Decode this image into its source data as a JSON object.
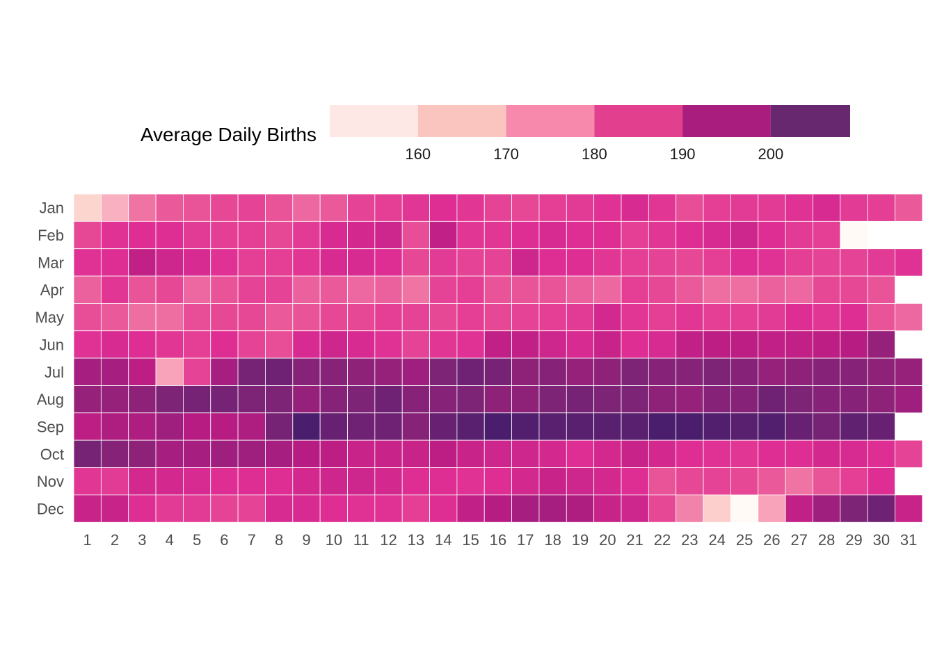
{
  "chart_data": {
    "type": "heatmap",
    "title": "",
    "xlabel": "",
    "ylabel": "",
    "legend": {
      "title": "Average Daily Births",
      "placement": "top",
      "breaks": [
        160,
        170,
        180,
        190,
        200
      ],
      "range": [
        150,
        209
      ],
      "colors": [
        "#fde8e5",
        "#fbc5bf",
        "#f689ac",
        "#e2408e",
        "#a81d7d",
        "#672870"
      ]
    },
    "color_scale": {
      "stops": [
        {
          "value": 150,
          "color": "#fffaf6"
        },
        {
          "value": 158,
          "color": "#fcd5cf"
        },
        {
          "value": 165,
          "color": "#f9aabd"
        },
        {
          "value": 172,
          "color": "#f07ba6"
        },
        {
          "value": 179,
          "color": "#e84d97"
        },
        {
          "value": 186,
          "color": "#de2d93"
        },
        {
          "value": 193,
          "color": "#b61c82"
        },
        {
          "value": 200,
          "color": "#7e2476"
        },
        {
          "value": 207,
          "color": "#4a1e6c"
        }
      ]
    },
    "x_categories": [
      "1",
      "2",
      "3",
      "4",
      "5",
      "6",
      "7",
      "8",
      "9",
      "10",
      "11",
      "12",
      "13",
      "14",
      "15",
      "16",
      "17",
      "18",
      "19",
      "20",
      "21",
      "22",
      "23",
      "24",
      "25",
      "26",
      "27",
      "28",
      "29",
      "30",
      "31"
    ],
    "y_categories": [
      "Jan",
      "Feb",
      "Mar",
      "Apr",
      "May",
      "Jun",
      "Jul",
      "Aug",
      "Sep",
      "Oct",
      "Nov",
      "Dec"
    ],
    "values": [
      [
        158,
        164,
        173,
        177,
        178,
        180,
        181,
        178,
        175,
        177,
        181,
        182,
        184,
        186,
        184,
        181,
        180,
        182,
        183,
        185,
        187,
        184,
        179,
        182,
        183,
        183,
        185,
        187,
        183,
        182,
        177
      ],
      [
        180,
        185,
        186,
        186,
        183,
        182,
        182,
        180,
        183,
        187,
        188,
        189,
        179,
        191,
        184,
        184,
        186,
        187,
        186,
        186,
        182,
        184,
        186,
        187,
        189,
        186,
        183,
        182,
        150,
        null,
        null
      ],
      [
        185,
        186,
        191,
        189,
        187,
        185,
        182,
        182,
        184,
        187,
        187,
        186,
        180,
        183,
        181,
        181,
        189,
        186,
        186,
        184,
        182,
        181,
        180,
        182,
        186,
        185,
        182,
        181,
        181,
        183,
        185
      ],
      [
        176,
        184,
        178,
        180,
        175,
        178,
        181,
        181,
        176,
        177,
        175,
        176,
        173,
        181,
        182,
        178,
        178,
        178,
        176,
        175,
        182,
        180,
        177,
        174,
        174,
        176,
        175,
        180,
        180,
        178,
        null
      ],
      [
        179,
        177,
        174,
        174,
        179,
        180,
        180,
        177,
        178,
        180,
        180,
        182,
        181,
        180,
        182,
        180,
        181,
        182,
        183,
        188,
        184,
        182,
        184,
        182,
        182,
        183,
        186,
        184,
        186,
        178,
        175
      ],
      [
        185,
        187,
        186,
        184,
        182,
        186,
        181,
        179,
        187,
        189,
        187,
        185,
        181,
        184,
        185,
        191,
        191,
        189,
        187,
        190,
        186,
        187,
        191,
        192,
        192,
        191,
        191,
        192,
        193,
        197,
        null
      ],
      [
        195,
        195,
        192,
        166,
        181,
        195,
        201,
        202,
        199,
        199,
        198,
        197,
        196,
        200,
        202,
        201,
        198,
        199,
        197,
        198,
        200,
        199,
        199,
        200,
        199,
        197,
        198,
        199,
        199,
        198,
        197
      ],
      [
        197,
        197,
        198,
        200,
        201,
        201,
        200,
        200,
        197,
        199,
        200,
        202,
        199,
        199,
        200,
        198,
        198,
        200,
        201,
        200,
        200,
        198,
        197,
        199,
        199,
        202,
        200,
        199,
        199,
        198,
        196
      ],
      [
        192,
        194,
        194,
        196,
        193,
        193,
        194,
        201,
        207,
        203,
        202,
        202,
        199,
        203,
        205,
        208,
        206,
        205,
        205,
        205,
        205,
        207,
        207,
        206,
        205,
        206,
        203,
        201,
        204,
        203,
        null
      ],
      [
        201,
        199,
        198,
        195,
        195,
        196,
        196,
        195,
        193,
        192,
        190,
        190,
        190,
        192,
        190,
        189,
        189,
        188,
        186,
        188,
        190,
        188,
        186,
        185,
        184,
        186,
        186,
        188,
        187,
        186,
        181
      ],
      [
        184,
        183,
        188,
        188,
        187,
        186,
        186,
        186,
        188,
        189,
        189,
        188,
        186,
        186,
        185,
        186,
        188,
        190,
        189,
        188,
        186,
        178,
        180,
        181,
        180,
        177,
        173,
        178,
        182,
        186,
        null
      ],
      [
        190,
        190,
        186,
        183,
        183,
        181,
        181,
        187,
        187,
        186,
        185,
        185,
        182,
        186,
        191,
        193,
        195,
        195,
        194,
        190,
        189,
        180,
        171,
        159,
        150,
        166,
        191,
        196,
        200,
        202,
        190
      ]
    ]
  }
}
